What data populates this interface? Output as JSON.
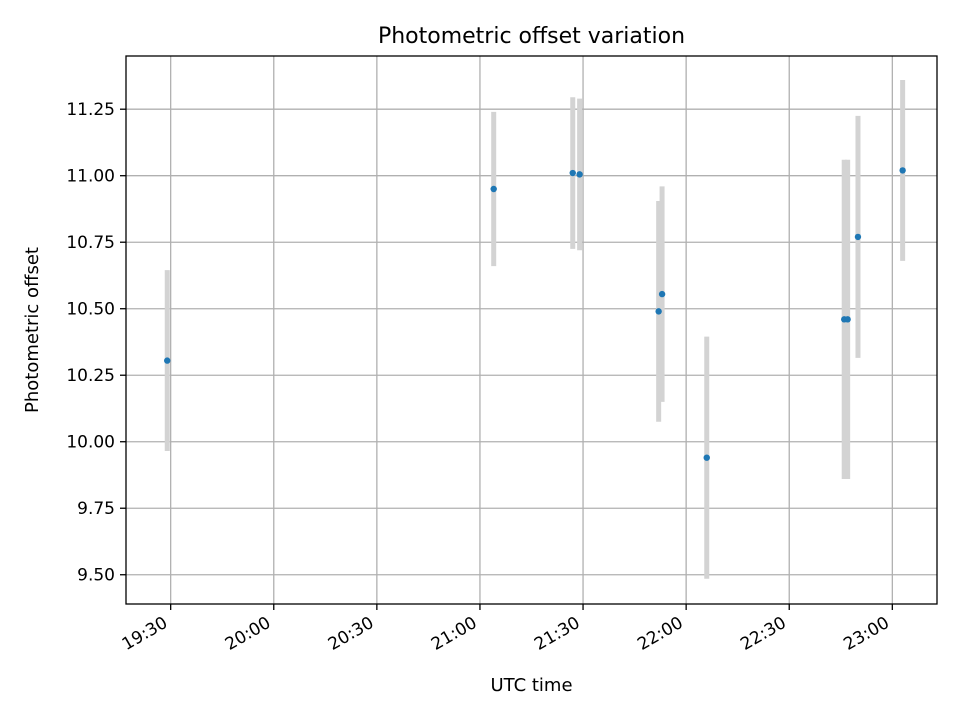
{
  "chart_data": {
    "type": "scatter",
    "title": "Photometric offset variation",
    "xlabel": "UTC time",
    "ylabel": "Photometric offset",
    "x_tick_labels": [
      "19:30",
      "20:00",
      "20:30",
      "21:00",
      "21:30",
      "22:00",
      "22:30",
      "23:00"
    ],
    "y_tick_labels": [
      "9.50",
      "9.75",
      "10.00",
      "10.25",
      "10.50",
      "10.75",
      "11.00",
      "11.25"
    ],
    "x_ticks": [
      "19:30",
      "20:00",
      "20:30",
      "21:00",
      "21:30",
      "22:00",
      "22:30",
      "23:00"
    ],
    "y_ticks": [
      9.5,
      9.75,
      10.0,
      10.25,
      10.5,
      10.75,
      11.0,
      11.25
    ],
    "xlim": [
      "19:17",
      "23:13"
    ],
    "ylim": [
      9.39,
      11.45
    ],
    "grid": true,
    "series": [
      {
        "marker_color": "#1f77b4",
        "errorbar_color": "#d3d3d3",
        "points": [
          {
            "x": "19:29",
            "y": 10.305,
            "yerr": 0.34
          },
          {
            "x": "21:04",
            "y": 10.95,
            "yerr": 0.29
          },
          {
            "x": "21:27",
            "y": 11.01,
            "yerr": 0.285
          },
          {
            "x": "21:29",
            "y": 11.005,
            "yerr": 0.285
          },
          {
            "x": "21:52",
            "y": 10.49,
            "yerr": 0.415
          },
          {
            "x": "21:53",
            "y": 10.555,
            "yerr": 0.405
          },
          {
            "x": "22:06",
            "y": 9.94,
            "yerr": 0.455
          },
          {
            "x": "22:46",
            "y": 10.46,
            "yerr": 0.6
          },
          {
            "x": "22:47",
            "y": 10.46,
            "yerr": 0.6
          },
          {
            "x": "22:50",
            "y": 10.77,
            "yerr": 0.455
          },
          {
            "x": "23:03",
            "y": 11.02,
            "yerr": 0.34
          }
        ]
      }
    ]
  }
}
